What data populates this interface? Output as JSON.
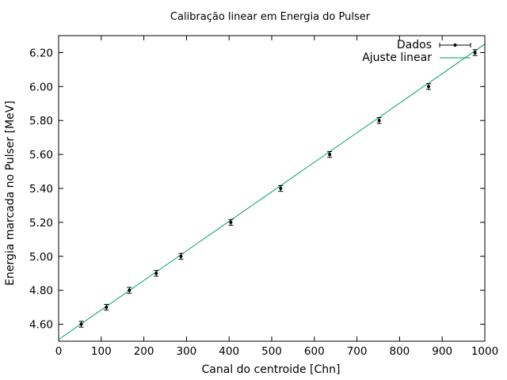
{
  "chart_data": {
    "type": "scatter",
    "title": "Calibração linear em Energia do Pulser",
    "xlabel": "Canal do centroide [Chn]",
    "ylabel": "Energia marcada no Pulser [MeV]",
    "xlim": [
      0,
      1000
    ],
    "ylim": [
      4.5,
      6.3
    ],
    "x_ticks": [
      "0",
      "100",
      "200",
      "300",
      "400",
      "500",
      "600",
      "700",
      "800",
      "900",
      "1000"
    ],
    "y_ticks": [
      "4.60",
      "4.80",
      "5.00",
      "5.20",
      "5.40",
      "5.60",
      "5.80",
      "6.00",
      "6.20"
    ],
    "grid": false,
    "legend_position": "top-right",
    "series": [
      {
        "name": "Dados",
        "style": "points-with-errorbars",
        "color": "#000000",
        "x": [
          53,
          112,
          166,
          229,
          287,
          404,
          521,
          636,
          752,
          868,
          977
        ],
        "y": [
          4.6,
          4.7,
          4.8,
          4.9,
          5.0,
          5.2,
          5.4,
          5.6,
          5.8,
          6.0,
          6.2
        ],
        "x_err": [
          0,
          0,
          0,
          0,
          0,
          0,
          0,
          0,
          0,
          0,
          0
        ],
        "y_err": [
          0.017,
          0.017,
          0.017,
          0.017,
          0.017,
          0.017,
          0.017,
          0.017,
          0.017,
          0.017,
          0.017
        ]
      },
      {
        "name": "Ajuste linear",
        "style": "line",
        "color": "#009e73",
        "x": [
          0,
          1000
        ],
        "y": [
          4.51,
          6.25
        ]
      }
    ]
  }
}
